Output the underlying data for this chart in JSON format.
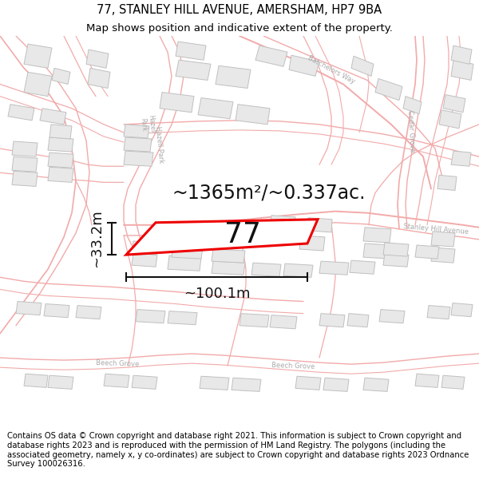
{
  "title": "77, STANLEY HILL AVENUE, AMERSHAM, HP7 9BA",
  "subtitle": "Map shows position and indicative extent of the property.",
  "footer": "Contains OS data © Crown copyright and database right 2021. This information is subject to Crown copyright and database rights 2023 and is reproduced with the permission of HM Land Registry. The polygons (including the associated geometry, namely x, y co-ordinates) are subject to Crown copyright and database rights 2023 Ordnance Survey 100026316.",
  "area_label": "~1365m²/~0.337ac.",
  "width_label": "~100.1m",
  "height_label": "~33.2m",
  "number_label": "77",
  "map_bg": "#ffffff",
  "street_color": "#f2aaaa",
  "building_fill": "#e8e8e8",
  "building_edge": "#c0c0c0",
  "plot_color": "#ee0000",
  "plot_fill": "#ffffff",
  "dim_color": "#111111",
  "road_label_color": "#aaaaaa",
  "title_fontsize": 10.5,
  "subtitle_fontsize": 9.5,
  "footer_fontsize": 7.2,
  "area_fontsize": 17,
  "number_fontsize": 26,
  "dim_fontsize": 13,
  "road_fontsize": 6
}
